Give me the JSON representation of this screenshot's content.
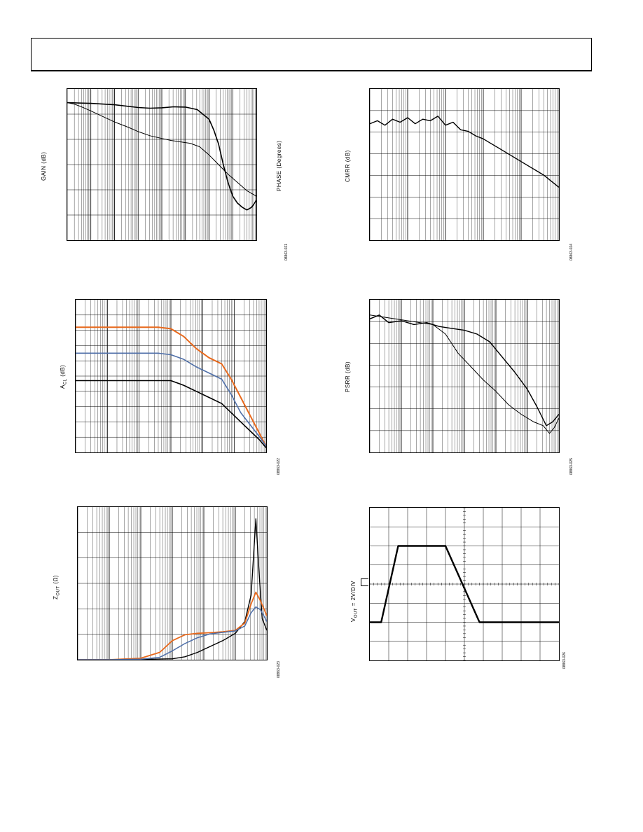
{
  "page": {
    "header_text": ""
  },
  "charts": [
    {
      "id": "c1",
      "ylabel": "GAIN (dB)",
      "ylabel2": "PHASE (Degrees)",
      "code": "08863-021"
    },
    {
      "id": "c2",
      "ylabel": "CMRR (dB)",
      "code": "08863-024"
    },
    {
      "id": "c3",
      "ylabel_main": "A",
      "ylabel_sub": "CL",
      "ylabel_rest": " (dB)",
      "code": "08863-022"
    },
    {
      "id": "c4",
      "ylabel": "PSRR (dB)",
      "code": "08863-025"
    },
    {
      "id": "c5",
      "ylabel_main": "Z",
      "ylabel_sub": "OUT",
      "ylabel_rest": " (Ω)",
      "code": "08863-023"
    },
    {
      "id": "c6",
      "ylabel_main": "V",
      "ylabel_sub": "OUT",
      "ylabel_rest": " = 2V/DIV",
      "code": "08863-026"
    }
  ],
  "chart_data": [
    {
      "type": "line",
      "title": "",
      "x_scale": "log",
      "x_decades": 8,
      "yticks": 6,
      "series": [
        {
          "values_x": [
            0,
            0.3,
            0.6,
            1.0,
            1.5,
            2.0,
            2.6,
            3.0,
            3.5,
            4.0,
            4.4,
            4.8,
            5.2,
            5.6,
            6.0,
            6.4,
            6.8,
            7.2,
            7.6,
            8.0
          ],
          "values_y": [
            100,
            99,
            97,
            94,
            90,
            86,
            82,
            79,
            76,
            74,
            72.5,
            71.5,
            70.5,
            68,
            62,
            55,
            48,
            42,
            36,
            32
          ]
        },
        {
          "values_x": [
            0,
            1.0,
            2.0,
            3.0,
            3.5,
            4.0,
            4.5,
            5.0,
            5.5,
            6.0,
            6.2,
            6.4,
            6.6,
            6.8,
            7.0,
            7.2,
            7.4,
            7.6,
            7.8,
            8.0
          ],
          "values_y": [
            100,
            99.5,
            98.5,
            96.5,
            96,
            96.3,
            97,
            96.8,
            95,
            88,
            80,
            70,
            55,
            42,
            32,
            27,
            24,
            22,
            24,
            29
          ]
        }
      ]
    },
    {
      "type": "line",
      "title": "",
      "x_scale": "log",
      "x_decades": 5,
      "yticks": 7,
      "series": [
        {
          "values_x": [
            0,
            0.2,
            0.4,
            0.6,
            0.8,
            1.0,
            1.2,
            1.4,
            1.6,
            1.8,
            2.0,
            2.2,
            2.4,
            2.6,
            2.8,
            3.0,
            3.2,
            3.4,
            3.6,
            3.8,
            4.0,
            4.2,
            4.4,
            4.6,
            4.8,
            5.0
          ],
          "values_y": [
            77,
            79,
            76,
            80,
            78,
            81,
            77,
            80,
            79,
            82,
            76,
            78,
            73,
            72,
            69,
            67,
            64,
            61,
            58,
            55,
            52,
            49,
            46,
            43,
            39,
            35
          ]
        }
      ]
    },
    {
      "type": "line",
      "title": "",
      "x_scale": "log",
      "x_decades": 6,
      "yticks": 10,
      "series": [
        {
          "values_x": [
            0,
            1.0,
            2.0,
            2.6,
            3.0,
            3.4,
            3.8,
            4.2,
            4.6,
            4.9,
            5.2,
            5.5,
            5.8,
            6.0
          ],
          "values_y": [
            82,
            82,
            82,
            82,
            81,
            76,
            68,
            62,
            58,
            48,
            36,
            24,
            12,
            4
          ]
        },
        {
          "values_x": [
            0,
            1.0,
            2.0,
            2.6,
            3.0,
            3.4,
            3.8,
            4.2,
            4.6,
            4.9,
            5.2,
            5.5,
            5.8,
            6.0
          ],
          "values_y": [
            65,
            65,
            65,
            65,
            64,
            61,
            56,
            52,
            48,
            38,
            26,
            18,
            10,
            4
          ]
        },
        {
          "values_x": [
            0,
            1.0,
            2.0,
            2.6,
            3.0,
            3.4,
            3.8,
            4.2,
            4.6,
            4.9,
            5.2,
            5.5,
            5.8,
            6.0
          ],
          "values_y": [
            47,
            47,
            47,
            47,
            47,
            44,
            40,
            36,
            32,
            26,
            20,
            14,
            8,
            3
          ]
        }
      ]
    },
    {
      "type": "line",
      "title": "",
      "x_scale": "log",
      "x_decades": 6,
      "yticks": 7,
      "series": [
        {
          "values_x": [
            0,
            0.3,
            0.6,
            1.0,
            1.4,
            1.8,
            2.2,
            2.6,
            3.0,
            3.4,
            3.8,
            4.2,
            4.6,
            5.0,
            5.3,
            5.6,
            5.8,
            6.0
          ],
          "values_y": [
            70,
            72,
            68,
            69,
            67,
            68,
            66,
            65,
            64,
            62,
            58,
            50,
            42,
            33,
            24,
            14,
            16,
            20
          ]
        },
        {
          "values_x": [
            0,
            0.4,
            0.8,
            1.2,
            1.6,
            2.0,
            2.4,
            2.8,
            3.2,
            3.6,
            4.0,
            4.4,
            4.8,
            5.2,
            5.5,
            5.7,
            5.85,
            6.0
          ],
          "values_y": [
            72,
            71,
            70,
            69,
            68,
            67,
            62,
            52,
            45,
            38,
            32,
            25,
            20,
            16,
            14,
            10,
            13,
            18
          ]
        }
      ]
    },
    {
      "type": "line",
      "title": "",
      "x_scale": "log",
      "x_decades": 6,
      "yticks": 6,
      "series": [
        {
          "values_x": [
            0,
            1.0,
            2.0,
            3.0,
            3.4,
            3.8,
            4.2,
            4.6,
            5.0,
            5.3,
            5.5,
            5.65,
            5.75,
            5.85,
            6.0
          ],
          "values_y": [
            0,
            0,
            0.1,
            0.3,
            1.0,
            2.5,
            4.5,
            6.5,
            9.0,
            13,
            22,
            48,
            30,
            14,
            10
          ]
        },
        {
          "values_x": [
            0,
            1.0,
            2.0,
            2.6,
            3.0,
            3.4,
            3.8,
            4.2,
            4.6,
            5.0,
            5.3,
            5.5,
            5.65,
            5.8,
            6.0
          ],
          "values_y": [
            0,
            0,
            0.5,
            2.5,
            6.5,
            8.5,
            9.0,
            9.2,
            9.5,
            10.0,
            12.5,
            19,
            23,
            20,
            15
          ]
        },
        {
          "values_x": [
            0,
            1.0,
            2.0,
            2.6,
            3.0,
            3.4,
            3.8,
            4.2,
            4.6,
            5.0,
            5.3,
            5.5,
            5.65,
            5.8,
            6.0
          ],
          "values_y": [
            0,
            0,
            0.2,
            0.8,
            3.0,
            5.5,
            7.5,
            8.8,
            9.3,
            9.8,
            11.5,
            16,
            18,
            17,
            13
          ]
        }
      ]
    },
    {
      "type": "line",
      "title": "",
      "x_divisions": 10,
      "y_divisions": 8,
      "series": [
        {
          "values_x": [
            0,
            0.6,
            1.5,
            3.4,
            4.0,
            5.8,
            10
          ],
          "values_y": [
            -2,
            -2,
            2,
            2,
            2,
            -2,
            -2
          ]
        }
      ]
    }
  ]
}
